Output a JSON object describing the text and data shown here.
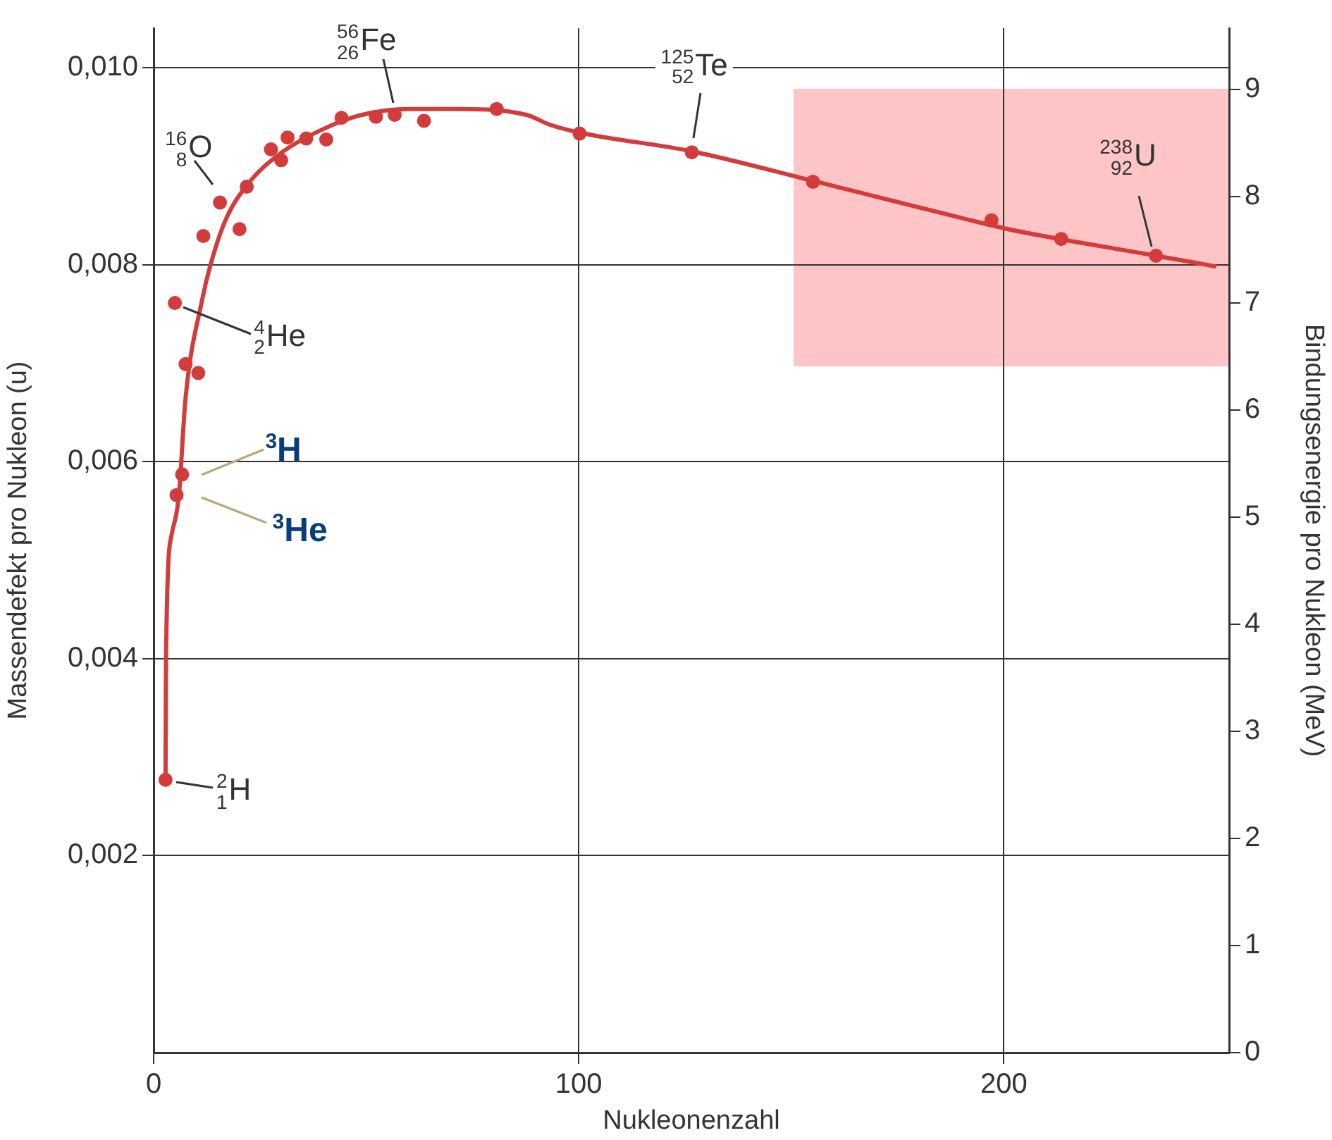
{
  "chart_data": {
    "type": "line",
    "xlabel": "Nukleonenzahl",
    "ylabel": "Massendefekt pro Nukleon (u)",
    "y2label": "Bindungsenergie pro Nukleon (MeV)",
    "xlim": [
      0,
      253
    ],
    "xticks": [
      0,
      100,
      200
    ],
    "ylim": [
      0,
      0.0104
    ],
    "yticks": [
      {
        "value": 0.002,
        "label": "0,002"
      },
      {
        "value": 0.004,
        "label": "0,004"
      },
      {
        "value": 0.006,
        "label": "0,006"
      },
      {
        "value": 0.008,
        "label": "0,008"
      },
      {
        "value": 0.01,
        "label": "0,010"
      }
    ],
    "y2lim": [
      0,
      9.57
    ],
    "y2ticks": [
      0,
      1,
      2,
      3,
      4,
      5,
      6,
      7,
      8,
      9
    ],
    "grid": true,
    "legend": false,
    "series": [
      {
        "type": "line",
        "marker": "none",
        "color": "#d33c3c",
        "x": [
          2.8,
          2.9,
          4.2,
          5.9,
          7.5,
          11.4,
          13.4,
          16.9,
          22.4,
          30.2,
          40.1,
          49,
          60,
          71,
          87.7,
          93.2,
          100.2,
          126.6,
          155.1,
          189.4,
          201,
          235.8,
          250
        ],
        "values": [
          0.00277,
          0.004,
          0.00525,
          0.00564,
          0.00664,
          0.00764,
          0.008,
          0.00845,
          0.00883,
          0.00914,
          0.00938,
          0.00952,
          0.00958,
          0.00958,
          0.00952,
          0.00942,
          0.00934,
          0.00915,
          0.00885,
          0.00848,
          0.00836,
          0.00809,
          0.00798
        ]
      },
      {
        "type": "scatter",
        "marker": "circle",
        "color": "#d33c3c",
        "x": [
          2.8,
          5,
          7.5,
          10.5,
          6.7,
          5.4,
          11.7,
          15.6,
          20.2,
          21.9,
          27.6,
          30,
          31.5,
          35.9,
          40.6,
          44.2,
          52.3,
          56.7,
          63.6,
          80.7,
          100.2,
          126.6,
          155.1,
          197.1,
          213.5,
          235.8
        ],
        "values": [
          0.00277,
          0.00761,
          0.00699,
          0.0069,
          0.00587,
          0.00566,
          0.00829,
          0.00863,
          0.00836,
          0.00879,
          0.00917,
          0.00906,
          0.00929,
          0.00928,
          0.00927,
          0.00949,
          0.0095,
          0.00952,
          0.00946,
          0.00958,
          0.00933,
          0.00914,
          0.00884,
          0.00845,
          0.00826,
          0.00809
        ]
      }
    ],
    "annotations": [
      {
        "text": "$^{2}$$_{1}$H",
        "x": 2.8,
        "y": 0.00277
      },
      {
        "text": "$^{3}$He",
        "x": 5.4,
        "y": 0.00566
      },
      {
        "text": "$^{3}$H",
        "x": 6.7,
        "y": 0.00587
      },
      {
        "text": "$^{4}$$_{2}$He",
        "x": 5,
        "y": 0.00761
      },
      {
        "text": "$^{16}$$_{8}$O",
        "x": 15.6,
        "y": 0.00863
      },
      {
        "text": "$^{56}$$_{26}$Fe",
        "x": 56.7,
        "y": 0.00952
      },
      {
        "text": "$^{125}$$_{52}$Te",
        "x": 126.6,
        "y": 0.00914
      },
      {
        "text": "$^{238}$$_{92}$U",
        "x": 235.8,
        "y": 0.00809
      }
    ]
  }
}
